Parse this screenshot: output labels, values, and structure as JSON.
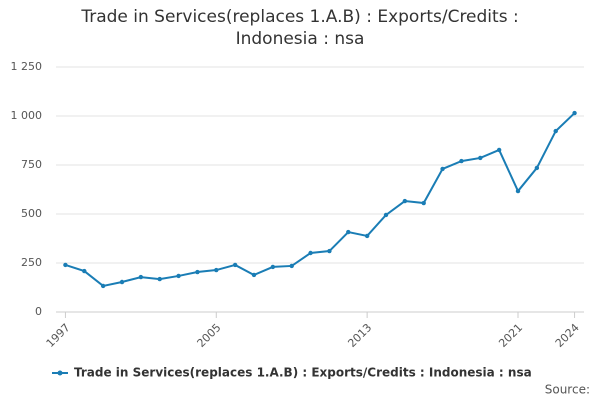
{
  "chart_data": {
    "type": "line",
    "title": "Trade in Services(replaces 1.A.B) : Exports/Credits : Indonesia : nsa",
    "x": [
      1997,
      1998,
      1999,
      2000,
      2001,
      2002,
      2003,
      2004,
      2005,
      2006,
      2007,
      2008,
      2009,
      2010,
      2011,
      2012,
      2013,
      2014,
      2015,
      2016,
      2017,
      2018,
      2019,
      2020,
      2021,
      2022,
      2023,
      2024
    ],
    "series": [
      {
        "name": "Trade in Services(replaces 1.A.B) : Exports/Credits : Indonesia : nsa",
        "color": "#1a7db5",
        "values": [
          240,
          209,
          133,
          153,
          178,
          168,
          184,
          204,
          214,
          240,
          189,
          230,
          235,
          301,
          311,
          408,
          388,
          495,
          566,
          556,
          730,
          770,
          786,
          827,
          617,
          735,
          923,
          1015
        ]
      }
    ],
    "xlim": [
      1996.5,
      2024.5
    ],
    "xticks": [
      1997,
      2005,
      2013,
      2021,
      2024
    ],
    "ylim": [
      0,
      1250
    ],
    "yticks": [
      0,
      250,
      500,
      750,
      {
        "value": 1000,
        "label": "1 000"
      },
      {
        "value": 1250,
        "label": "1 250"
      }
    ],
    "grid": true,
    "legend": "bottom",
    "source": "Source:"
  }
}
